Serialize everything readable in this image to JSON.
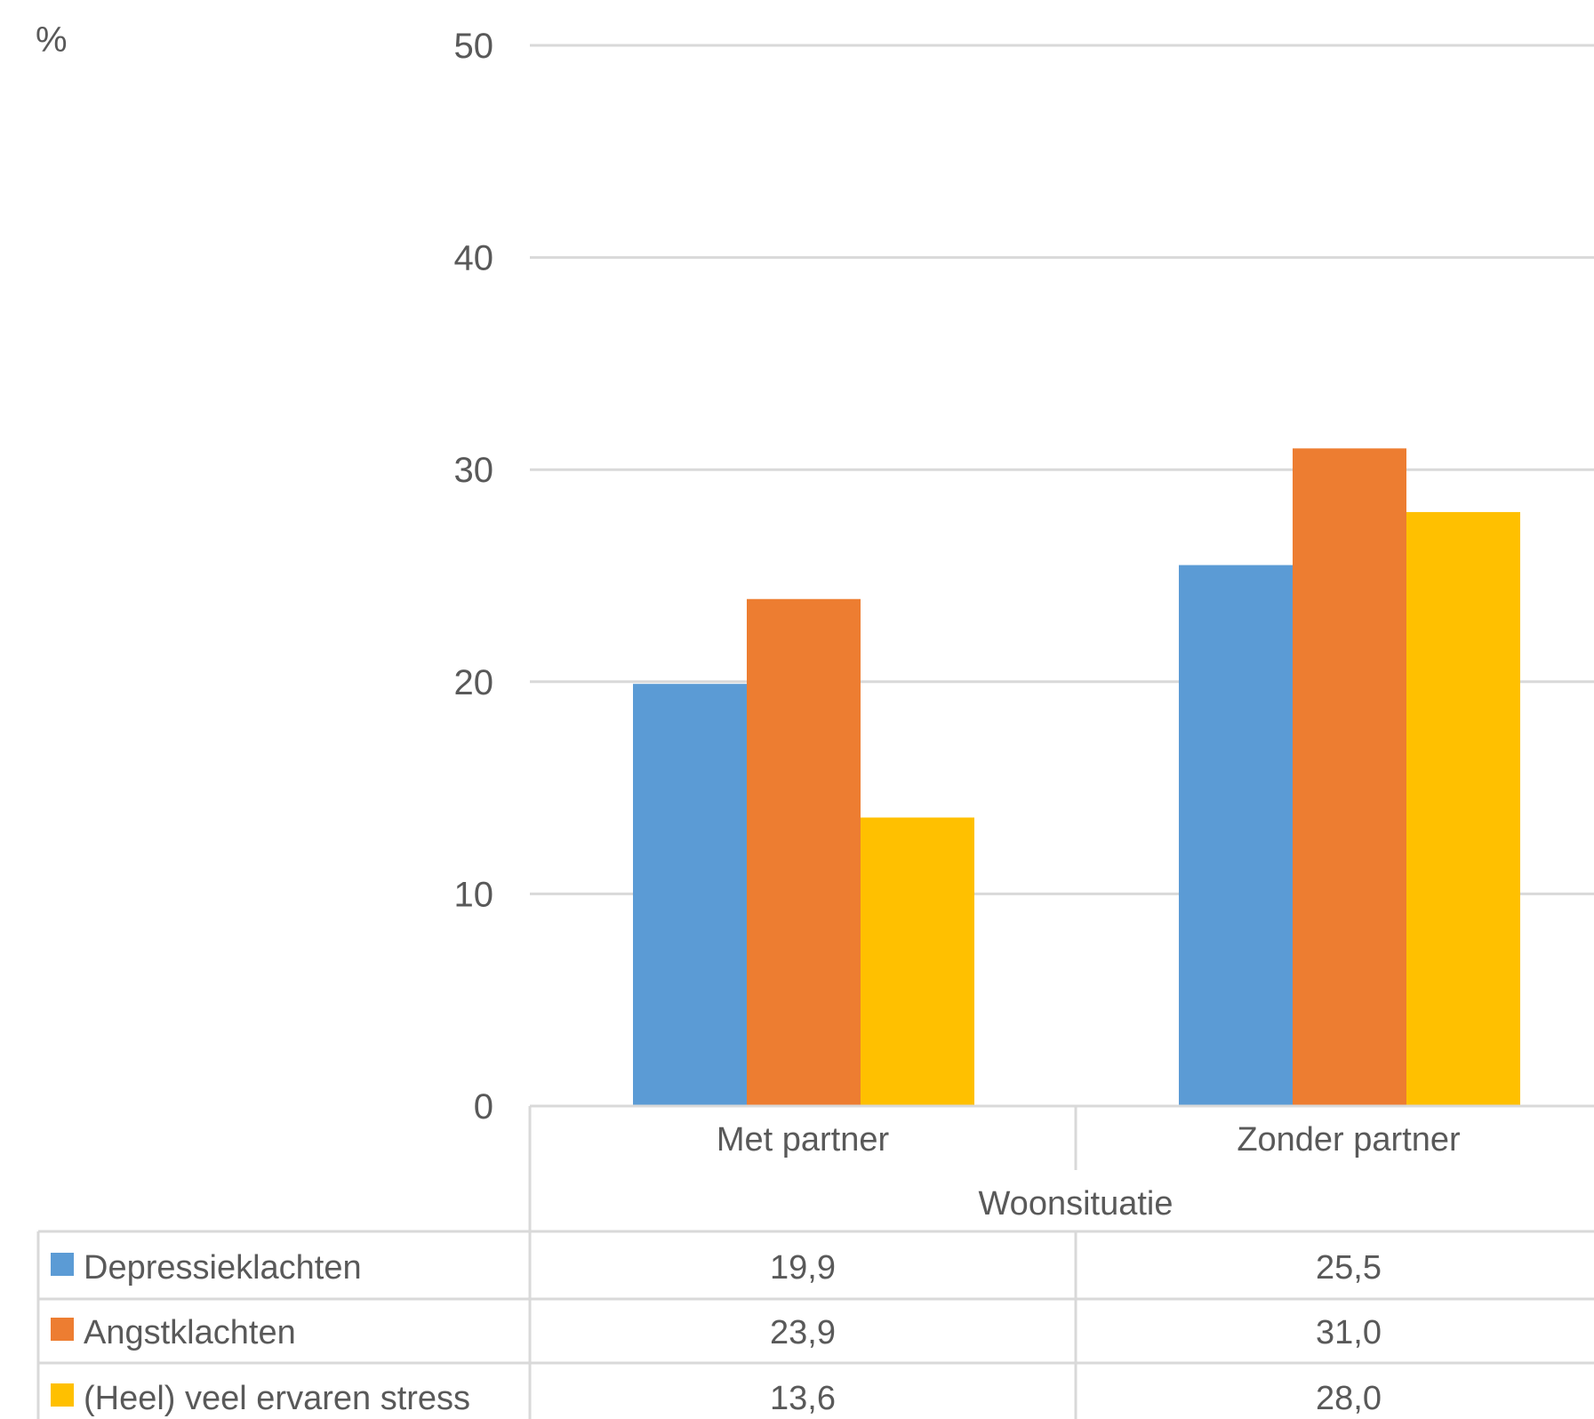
{
  "chart_data": {
    "type": "bar",
    "y_unit_label": "%",
    "ylim": [
      0,
      50
    ],
    "yticks": [
      0,
      10,
      20,
      30,
      40,
      50
    ],
    "grid": true,
    "categories": [
      "Met partner",
      "Zonder partner"
    ],
    "category_group_label": "Woonsituatie",
    "series": [
      {
        "name": "Depressieklachten",
        "color": "#5B9BD5",
        "values": [
          19.9,
          25.5
        ],
        "labels": [
          "19,9",
          "25,5"
        ]
      },
      {
        "name": "Angstklachten",
        "color": "#ED7D31",
        "values": [
          23.9,
          31.0
        ],
        "labels": [
          "23,9",
          "31,0"
        ]
      },
      {
        "name": "(Heel) veel ervaren stress",
        "color": "#FFC000",
        "values": [
          13.6,
          28.0
        ],
        "labels": [
          "13,6",
          "28,0"
        ]
      }
    ],
    "legend": "data-table-below"
  }
}
